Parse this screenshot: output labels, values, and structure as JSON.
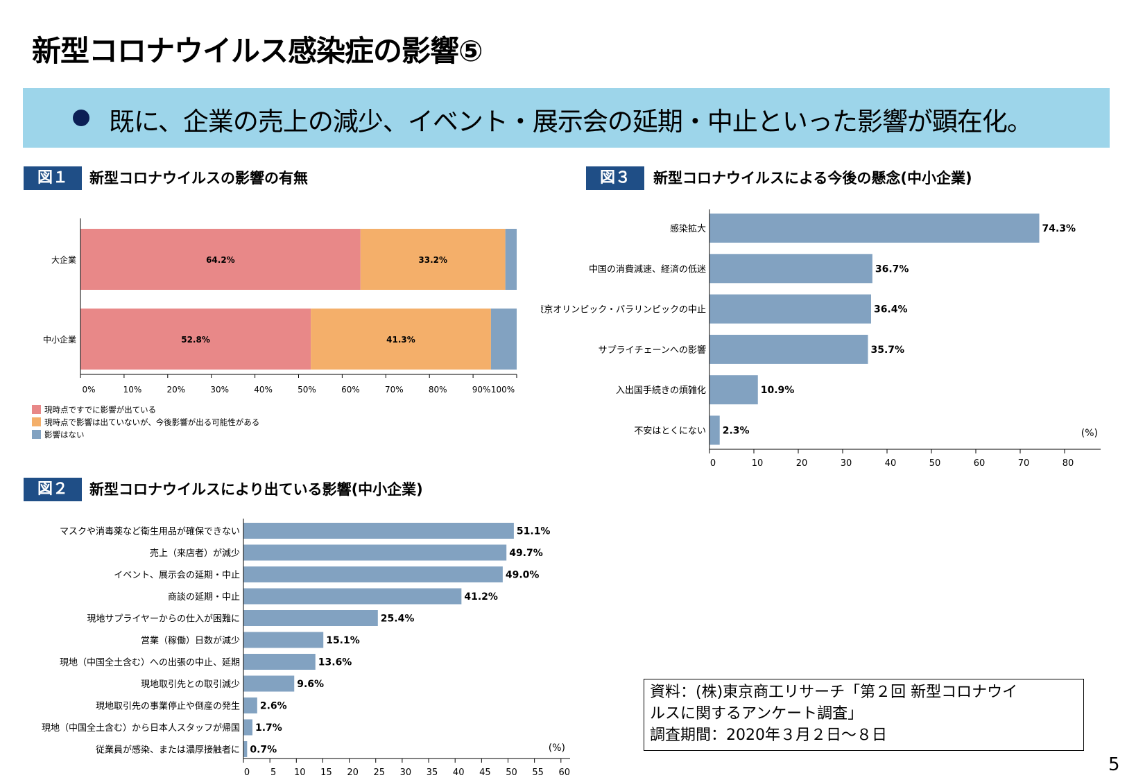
{
  "title": "新型コロナウイルス感染症の影響⑤",
  "banner": {
    "bullet_icon": "filled-circle",
    "text": "既に、企業の売上の減少、イベント・展示会の延期・中止といった影響が顕在化。"
  },
  "colors": {
    "banner": "#9dd5ea",
    "label": "#1f4e86",
    "bar": "#82a2c1",
    "impacted": "#e88888",
    "future": "#f4af6a",
    "none": "#82a2c1"
  },
  "fig1": {
    "label": "図１",
    "title": "新型コロナウイルスの影響の有無",
    "chart_data": {
      "type": "bar",
      "orientation": "horizontal",
      "stacked": true,
      "categories": [
        "大企業",
        "中小企業"
      ],
      "series": [
        {
          "name": "現時点ですでに影響が出ている",
          "values": [
            64.2,
            52.8
          ],
          "labels": [
            "64.2%",
            "52.8%"
          ]
        },
        {
          "name": "現時点で影響は出ていないが、今後影響が出る可能性がある",
          "values": [
            33.2,
            41.3
          ],
          "labels": [
            "33.2%",
            "41.3%"
          ]
        },
        {
          "name": "影響はない",
          "values": [
            2.6,
            5.9
          ],
          "labels": [
            "",
            ""
          ]
        }
      ],
      "xlim": [
        0,
        100
      ],
      "xticks": [
        "0%",
        "10%",
        "20%",
        "30%",
        "40%",
        "50%",
        "60%",
        "70%",
        "80%",
        "90%",
        "100%"
      ],
      "legend": "bottom-left"
    }
  },
  "fig2": {
    "label": "図２",
    "title": "新型コロナウイルスにより出ている影響(中小企業)",
    "chart_data": {
      "type": "bar",
      "orientation": "horizontal",
      "categories": [
        "マスクや消毒薬など衛生用品が確保できない",
        "売上（来店者）が減少",
        "イベント、展示会の延期・中止",
        "商談の延期・中止",
        "現地サプライヤーからの仕入が困難に",
        "営業（稼働）日数が減少",
        "現地（中国全土含む）への出張の中止、延期",
        "現地取引先との取引減少",
        "現地取引先の事業停止や倒産の発生",
        "現地（中国全土含む）から日本人スタッフが帰国",
        "従業員が感染、または濃厚接触者に"
      ],
      "values": [
        51.1,
        49.7,
        49.0,
        41.2,
        25.4,
        15.1,
        13.6,
        9.6,
        2.6,
        1.7,
        0.7
      ],
      "labels": [
        "51.1%",
        "49.7%",
        "49.0%",
        "41.2%",
        "25.4%",
        "15.1%",
        "13.6%",
        "9.6%",
        "2.6%",
        "1.7%",
        "0.7%"
      ],
      "xlim": [
        0,
        60
      ],
      "xticks": [
        "0",
        "5",
        "10",
        "15",
        "20",
        "25",
        "30",
        "35",
        "40",
        "45",
        "50",
        "55",
        "60"
      ],
      "unit": "(%)"
    }
  },
  "fig3": {
    "label": "図３",
    "title": "新型コロナウイルスによる今後の懸念(中小企業)",
    "chart_data": {
      "type": "bar",
      "orientation": "horizontal",
      "categories": [
        "感染拡大",
        "中国の消費減速、経済の低迷",
        "東京オリンピック・パラリンピックの中止",
        "サプライチェーンへの影響",
        "入出国手続きの煩雑化",
        "不安はとくにない"
      ],
      "values": [
        74.3,
        36.7,
        36.4,
        35.7,
        10.9,
        2.3
      ],
      "labels": [
        "74.3%",
        "36.7%",
        "36.4%",
        "35.7%",
        "10.9%",
        "2.3%"
      ],
      "xlim": [
        0,
        85
      ],
      "xticks": [
        "0",
        "10",
        "20",
        "30",
        "40",
        "50",
        "60",
        "70",
        "80"
      ],
      "unit": "(%)"
    }
  },
  "source": {
    "line1": "資料：(株)東京商工リサーチ「第２回 新型コロナウイ",
    "line2": "ルスに関するアンケート調査」",
    "line3": "調査期間：2020年３月２日～８日"
  },
  "page_number": "5"
}
